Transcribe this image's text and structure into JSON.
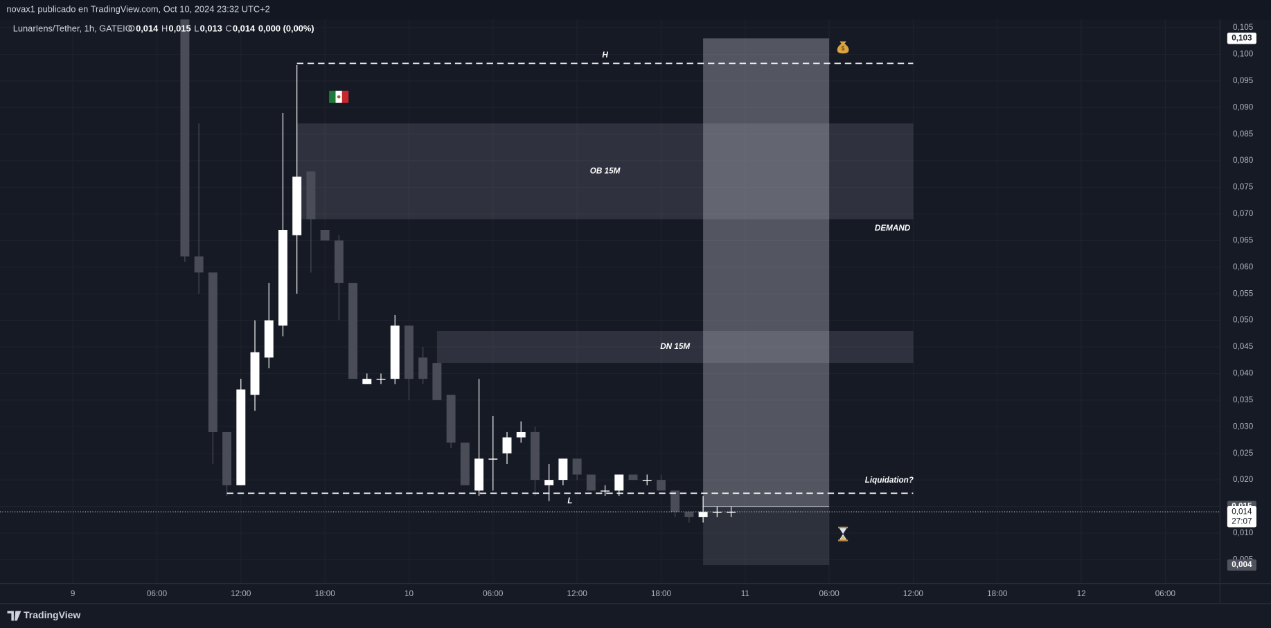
{
  "header": {
    "publisher": "novax1 publicado en TradingView.com, Oct 10, 2024 23:32 UTC+2"
  },
  "footer": {
    "brand": "TradingView"
  },
  "chart_data": {
    "type": "candlestick",
    "symbol": "LunarIens/Tether, 1h, GATEIO",
    "ohlc_legend": [
      {
        "key": "O",
        "value": "0,014"
      },
      {
        "key": "H",
        "value": "0,015"
      },
      {
        "key": "L",
        "value": "0,013"
      },
      {
        "key": "C",
        "value": "0,014"
      }
    ],
    "change": "0,000 (0,00%)",
    "x": [
      8,
      9,
      10,
      11,
      12,
      13,
      14,
      15,
      16,
      17,
      18,
      19,
      20,
      21,
      22,
      23,
      24,
      25,
      26,
      27,
      28,
      29,
      30,
      31,
      32,
      33,
      34,
      35,
      36,
      37,
      38,
      39,
      40,
      41,
      42,
      43,
      44,
      45,
      46,
      47
    ],
    "open": [
      0.107,
      0.062,
      0.059,
      0.029,
      0.019,
      0.036,
      0.043,
      0.049,
      0.066,
      0.078,
      0.067,
      0.065,
      0.057,
      0.038,
      0.039,
      0.039,
      0.049,
      0.043,
      0.042,
      0.036,
      0.027,
      0.018,
      0.024,
      0.025,
      0.028,
      0.029,
      0.019,
      0.02,
      0.024,
      0.021,
      0.018,
      0.018,
      0.021,
      0.02,
      0.02,
      0.018,
      0.014,
      0.013,
      0.014,
      0.014
    ],
    "high": [
      0.109,
      0.087,
      0.059,
      0.029,
      0.039,
      0.05,
      0.057,
      0.089,
      0.098,
      0.078,
      0.067,
      0.066,
      0.057,
      0.04,
      0.04,
      0.051,
      0.049,
      0.045,
      0.042,
      0.036,
      0.027,
      0.039,
      0.032,
      0.029,
      0.031,
      0.03,
      0.023,
      0.024,
      0.024,
      0.021,
      0.019,
      0.021,
      0.021,
      0.021,
      0.021,
      0.018,
      0.014,
      0.017,
      0.015,
      0.015
    ],
    "low": [
      0.061,
      0.055,
      0.023,
      0.017,
      0.019,
      0.033,
      0.041,
      0.047,
      0.055,
      0.059,
      0.065,
      0.05,
      0.039,
      0.038,
      0.038,
      0.038,
      0.035,
      0.038,
      0.035,
      0.026,
      0.019,
      0.017,
      0.018,
      0.023,
      0.027,
      0.017,
      0.016,
      0.019,
      0.02,
      0.018,
      0.017,
      0.017,
      0.02,
      0.019,
      0.018,
      0.013,
      0.012,
      0.012,
      0.013,
      0.013
    ],
    "close": [
      0.062,
      0.059,
      0.029,
      0.019,
      0.037,
      0.044,
      0.05,
      0.067,
      0.077,
      0.069,
      0.065,
      0.057,
      0.039,
      0.039,
      0.039,
      0.049,
      0.039,
      0.039,
      0.035,
      0.027,
      0.019,
      0.024,
      0.024,
      0.028,
      0.029,
      0.02,
      0.02,
      0.024,
      0.021,
      0.018,
      0.018,
      0.021,
      0.02,
      0.02,
      0.018,
      0.014,
      0.013,
      0.014,
      0.014,
      0.014
    ],
    "up_color": "#ffffff",
    "down_color": "#4a4d57",
    "xlim": [
      -5.2,
      81.9
    ],
    "xticks": [
      {
        "value": 0,
        "label": "9"
      },
      {
        "value": 6,
        "label": "06:00"
      },
      {
        "value": 12,
        "label": "12:00"
      },
      {
        "value": 18,
        "label": "18:00"
      },
      {
        "value": 24,
        "label": "10"
      },
      {
        "value": 30,
        "label": "06:00"
      },
      {
        "value": 36,
        "label": "12:00"
      },
      {
        "value": 42,
        "label": "18:00"
      },
      {
        "value": 48,
        "label": "11"
      },
      {
        "value": 54,
        "label": "06:00"
      },
      {
        "value": 60,
        "label": "12:00"
      },
      {
        "value": 66,
        "label": "18:00"
      },
      {
        "value": 72,
        "label": "12"
      },
      {
        "value": 78,
        "label": "06:00"
      }
    ],
    "ylim": [
      0.001,
      0.105
    ],
    "yticks": [
      {
        "value": 0.005,
        "label": "0,005"
      },
      {
        "value": 0.01,
        "label": "0,010"
      },
      {
        "value": 0.015,
        "label": "0,015"
      },
      {
        "value": 0.02,
        "label": "0,020"
      },
      {
        "value": 0.025,
        "label": "0,025"
      },
      {
        "value": 0.03,
        "label": "0,030"
      },
      {
        "value": 0.035,
        "label": "0,035"
      },
      {
        "value": 0.04,
        "label": "0,040"
      },
      {
        "value": 0.045,
        "label": "0,045"
      },
      {
        "value": 0.05,
        "label": "0,050"
      },
      {
        "value": 0.055,
        "label": "0,055"
      },
      {
        "value": 0.06,
        "label": "0,060"
      },
      {
        "value": 0.065,
        "label": "0,065"
      },
      {
        "value": 0.07,
        "label": "0,070"
      },
      {
        "value": 0.075,
        "label": "0,075"
      },
      {
        "value": 0.08,
        "label": "0,080"
      },
      {
        "value": 0.085,
        "label": "0,085"
      },
      {
        "value": 0.09,
        "label": "0,090"
      },
      {
        "value": 0.095,
        "label": "0,095"
      },
      {
        "value": 0.1,
        "label": "0,100"
      },
      {
        "value": 0.105,
        "label": "0,105"
      }
    ],
    "grid": true,
    "levels": [
      {
        "label": "H",
        "value": 0.0983,
        "x": [
          16,
          60
        ]
      },
      {
        "label": "L",
        "value": 0.0175,
        "x": [
          11,
          60
        ]
      }
    ],
    "zones": [
      {
        "label": "OB 15M",
        "low": 0.069,
        "high": 0.087,
        "x": [
          16,
          60
        ]
      },
      {
        "label": "DN 15M",
        "low": 0.042,
        "high": 0.048,
        "x": [
          26,
          60
        ]
      }
    ],
    "position": {
      "x": [
        45,
        54
      ],
      "target": 0.103,
      "entry": 0.015,
      "stop": 0.004
    },
    "notes": [
      "DEMAND",
      "Liquidation?"
    ],
    "price_tags": [
      {
        "value": 0.103,
        "label": "0,103"
      },
      {
        "value": 0.015,
        "label": "0,015"
      },
      {
        "value": 0.004,
        "label": "0,004"
      }
    ],
    "last_price": {
      "value": 0.014,
      "label": "0,014",
      "countdown": "27:07"
    }
  }
}
